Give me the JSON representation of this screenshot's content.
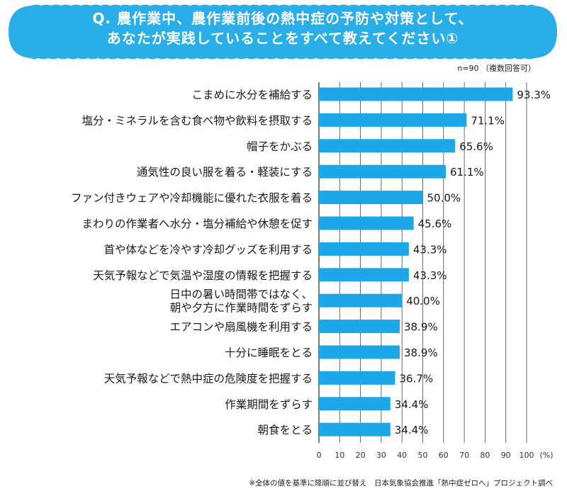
{
  "title": {
    "line1": "Q. 農作業中、農作業前後の熱中症の予防や対策として、",
    "line2": "あなたが実践していることをすべて教えてください①"
  },
  "sample_note": "n=90 （複数回答可）",
  "footnote": "※全体の値を基準に降順に並び替え　日本気象協会推進「熱中症ゼロへ」プロジェクト調べ",
  "colors": {
    "banner": "#2aaee8",
    "bar": "#1da7e8",
    "grid": "#444444"
  },
  "chart_data": {
    "type": "bar",
    "orientation": "horizontal",
    "categories": [
      "こまめに水分を補給する",
      "塩分・ミネラルを含む食べ物や飲料を摂取する",
      "帽子をかぶる",
      "通気性の良い服を着る・軽装にする",
      "ファン付きウェアや冷却機能に優れた衣服を着る",
      "まわりの作業者へ水分・塩分補給や休憩を促す",
      "首や体などを冷やす冷却グッズを利用する",
      "天気予報などで気温や湿度の情報を把握する",
      "日中の暑い時間帯ではなく、\n朝や夕方に作業時間をずらす",
      "エアコンや扇風機を利用する",
      "十分に睡眠をとる",
      "天気予報などで熱中症の危険度を把握する",
      "作業期間をずらす",
      "朝食をとる"
    ],
    "values": [
      93.3,
      71.1,
      65.6,
      61.1,
      50.0,
      45.6,
      43.3,
      43.3,
      40.0,
      38.9,
      38.9,
      36.7,
      34.4,
      34.4
    ],
    "value_labels": [
      "93.3%",
      "71.1%",
      "65.6%",
      "61.1%",
      "50.0%",
      "45.6%",
      "43.3%",
      "43.3%",
      "40.0%",
      "38.9%",
      "38.9%",
      "36.7%",
      "34.4%",
      "34.4%"
    ],
    "xlim": [
      0,
      100
    ],
    "xticks": [
      0,
      10,
      20,
      30,
      40,
      50,
      60,
      70,
      80,
      90,
      100
    ],
    "tick_labels": [
      "0",
      "10",
      "20",
      "30",
      "40",
      "50",
      "60",
      "70",
      "80",
      "90",
      "100"
    ],
    "xunit": "(%)",
    "grid": true
  }
}
